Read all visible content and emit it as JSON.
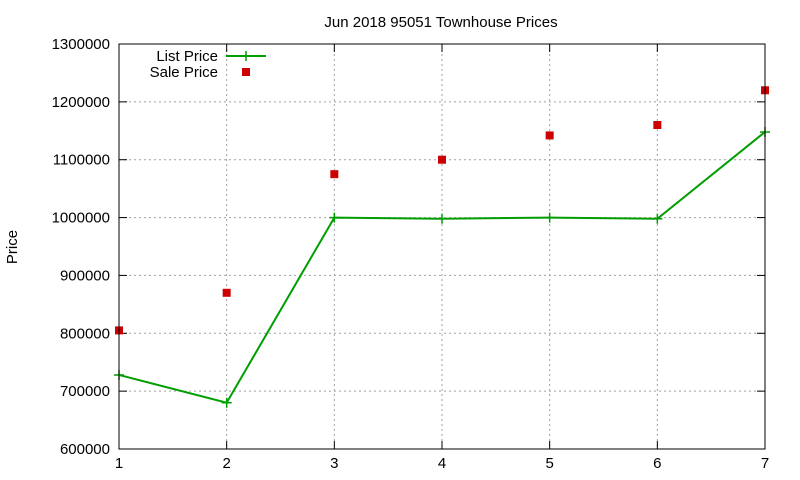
{
  "chart_data": {
    "type": "line",
    "title": "Jun 2018 95051 Townhouse Prices",
    "xlabel": "",
    "ylabel": "Price",
    "xlim": [
      1,
      7
    ],
    "ylim": [
      600000,
      1300000
    ],
    "xticks": [
      1,
      2,
      3,
      4,
      5,
      6,
      7
    ],
    "yticks": [
      600000,
      700000,
      800000,
      900000,
      1000000,
      1100000,
      1200000,
      1300000
    ],
    "grid": true,
    "legend_position": "top-left",
    "series": [
      {
        "name": "List Price",
        "style": "line+points",
        "marker": "plus",
        "color": "#009e00",
        "x": [
          1,
          2,
          3,
          4,
          5,
          6,
          7
        ],
        "y": [
          728000,
          680000,
          1000000,
          998000,
          1000000,
          998000,
          1148000
        ]
      },
      {
        "name": "Sale Price",
        "style": "points",
        "marker": "square",
        "color": "#cc0000",
        "x": [
          1,
          2,
          3,
          4,
          5,
          6,
          7
        ],
        "y": [
          805000,
          870000,
          1075000,
          1100000,
          1142000,
          1160000,
          1220000
        ]
      }
    ]
  }
}
